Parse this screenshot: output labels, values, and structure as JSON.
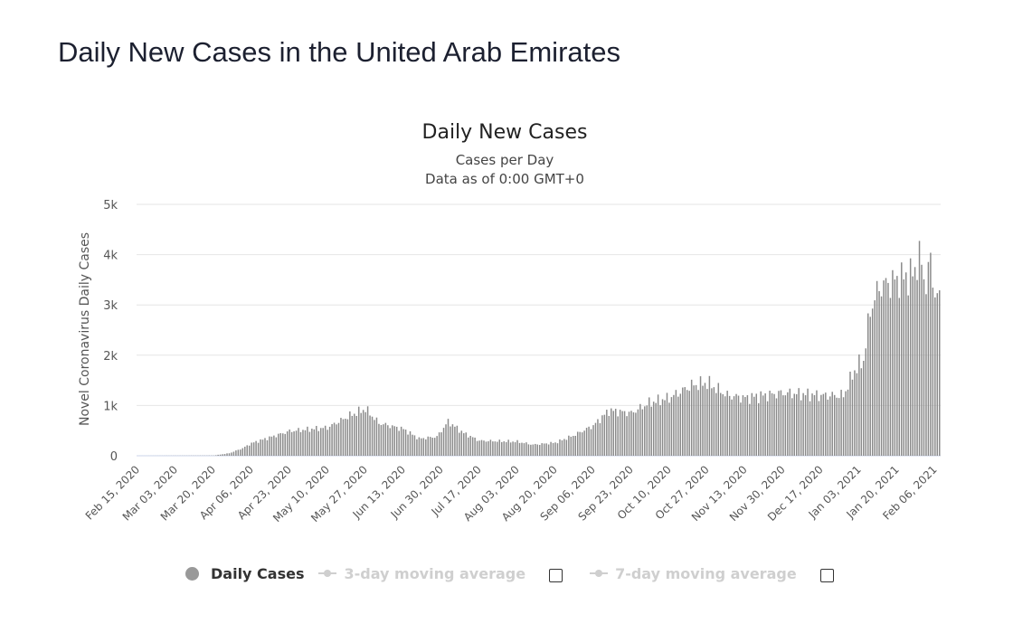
{
  "page_title": "Daily New Cases in the United Arab Emirates",
  "legend": {
    "daily_cases": "Daily Cases",
    "ma3": "3-day moving average",
    "ma7": "7-day moving average"
  },
  "colors": {
    "bar": "#8a8a8a",
    "grid": "#e6e6e6",
    "legend_active": "#999999",
    "legend_inactive": "#cfcfcf"
  },
  "chart_data": {
    "type": "bar",
    "title": "Daily New Cases",
    "subtitle": [
      "Cases per Day",
      "Data as of 0:00 GMT+0"
    ],
    "ylabel": "Novel Coronavirus Daily Cases",
    "ylim": [
      0,
      5000
    ],
    "yticks": [
      0,
      1000,
      2000,
      3000,
      4000,
      5000
    ],
    "ytick_labels": [
      "0",
      "1k",
      "2k",
      "3k",
      "4k",
      "5k"
    ],
    "x_start": "2020-02-15",
    "x_end": "2021-02-08",
    "xtick_labels": [
      "Feb 15, 2020",
      "Mar 03, 2020",
      "Mar 20, 2020",
      "Apr 06, 2020",
      "Apr 23, 2020",
      "May 10, 2020",
      "May 27, 2020",
      "Jun 13, 2020",
      "Jun 30, 2020",
      "Jul 17, 2020",
      "Aug 03, 2020",
      "Aug 20, 2020",
      "Sep 06, 2020",
      "Sep 23, 2020",
      "Oct 10, 2020",
      "Oct 27, 2020",
      "Nov 13, 2020",
      "Nov 30, 2020",
      "Dec 17, 2020",
      "Jan 03, 2021",
      "Jan 20, 2021",
      "Feb 06, 2021"
    ],
    "keyframes": [
      [
        "2020-02-15",
        0
      ],
      [
        "2020-03-20",
        5
      ],
      [
        "2020-03-27",
        50
      ],
      [
        "2020-04-02",
        150
      ],
      [
        "2020-04-06",
        250
      ],
      [
        "2020-04-23",
        490
      ],
      [
        "2020-05-10",
        560
      ],
      [
        "2020-05-20",
        800
      ],
      [
        "2020-05-27",
        930
      ],
      [
        "2020-06-02",
        650
      ],
      [
        "2020-06-13",
        530
      ],
      [
        "2020-06-20",
        340
      ],
      [
        "2020-06-28",
        380
      ],
      [
        "2020-07-03",
        680
      ],
      [
        "2020-07-10",
        450
      ],
      [
        "2020-07-17",
        300
      ],
      [
        "2020-08-03",
        280
      ],
      [
        "2020-08-10",
        220
      ],
      [
        "2020-08-20",
        260
      ],
      [
        "2020-08-28",
        400
      ],
      [
        "2020-09-06",
        600
      ],
      [
        "2020-09-13",
        900
      ],
      [
        "2020-09-23",
        850
      ],
      [
        "2020-10-01",
        1050
      ],
      [
        "2020-10-10",
        1150
      ],
      [
        "2020-10-20",
        1400
      ],
      [
        "2020-10-27",
        1450
      ],
      [
        "2020-11-05",
        1200
      ],
      [
        "2020-11-13",
        1150
      ],
      [
        "2020-11-30",
        1250
      ],
      [
        "2020-12-17",
        1200
      ],
      [
        "2020-12-27",
        1200
      ],
      [
        "2021-01-01",
        1700
      ],
      [
        "2021-01-05",
        1900
      ],
      [
        "2021-01-08",
        2900
      ],
      [
        "2021-01-12",
        3350
      ],
      [
        "2021-01-20",
        3500
      ],
      [
        "2021-01-27",
        3600
      ],
      [
        "2021-01-30",
        3950
      ],
      [
        "2021-02-02",
        3400
      ],
      [
        "2021-02-04",
        3900
      ],
      [
        "2021-02-06",
        3200
      ],
      [
        "2021-02-08",
        3100
      ]
    ],
    "grid": true,
    "legend_position": "bottom"
  }
}
